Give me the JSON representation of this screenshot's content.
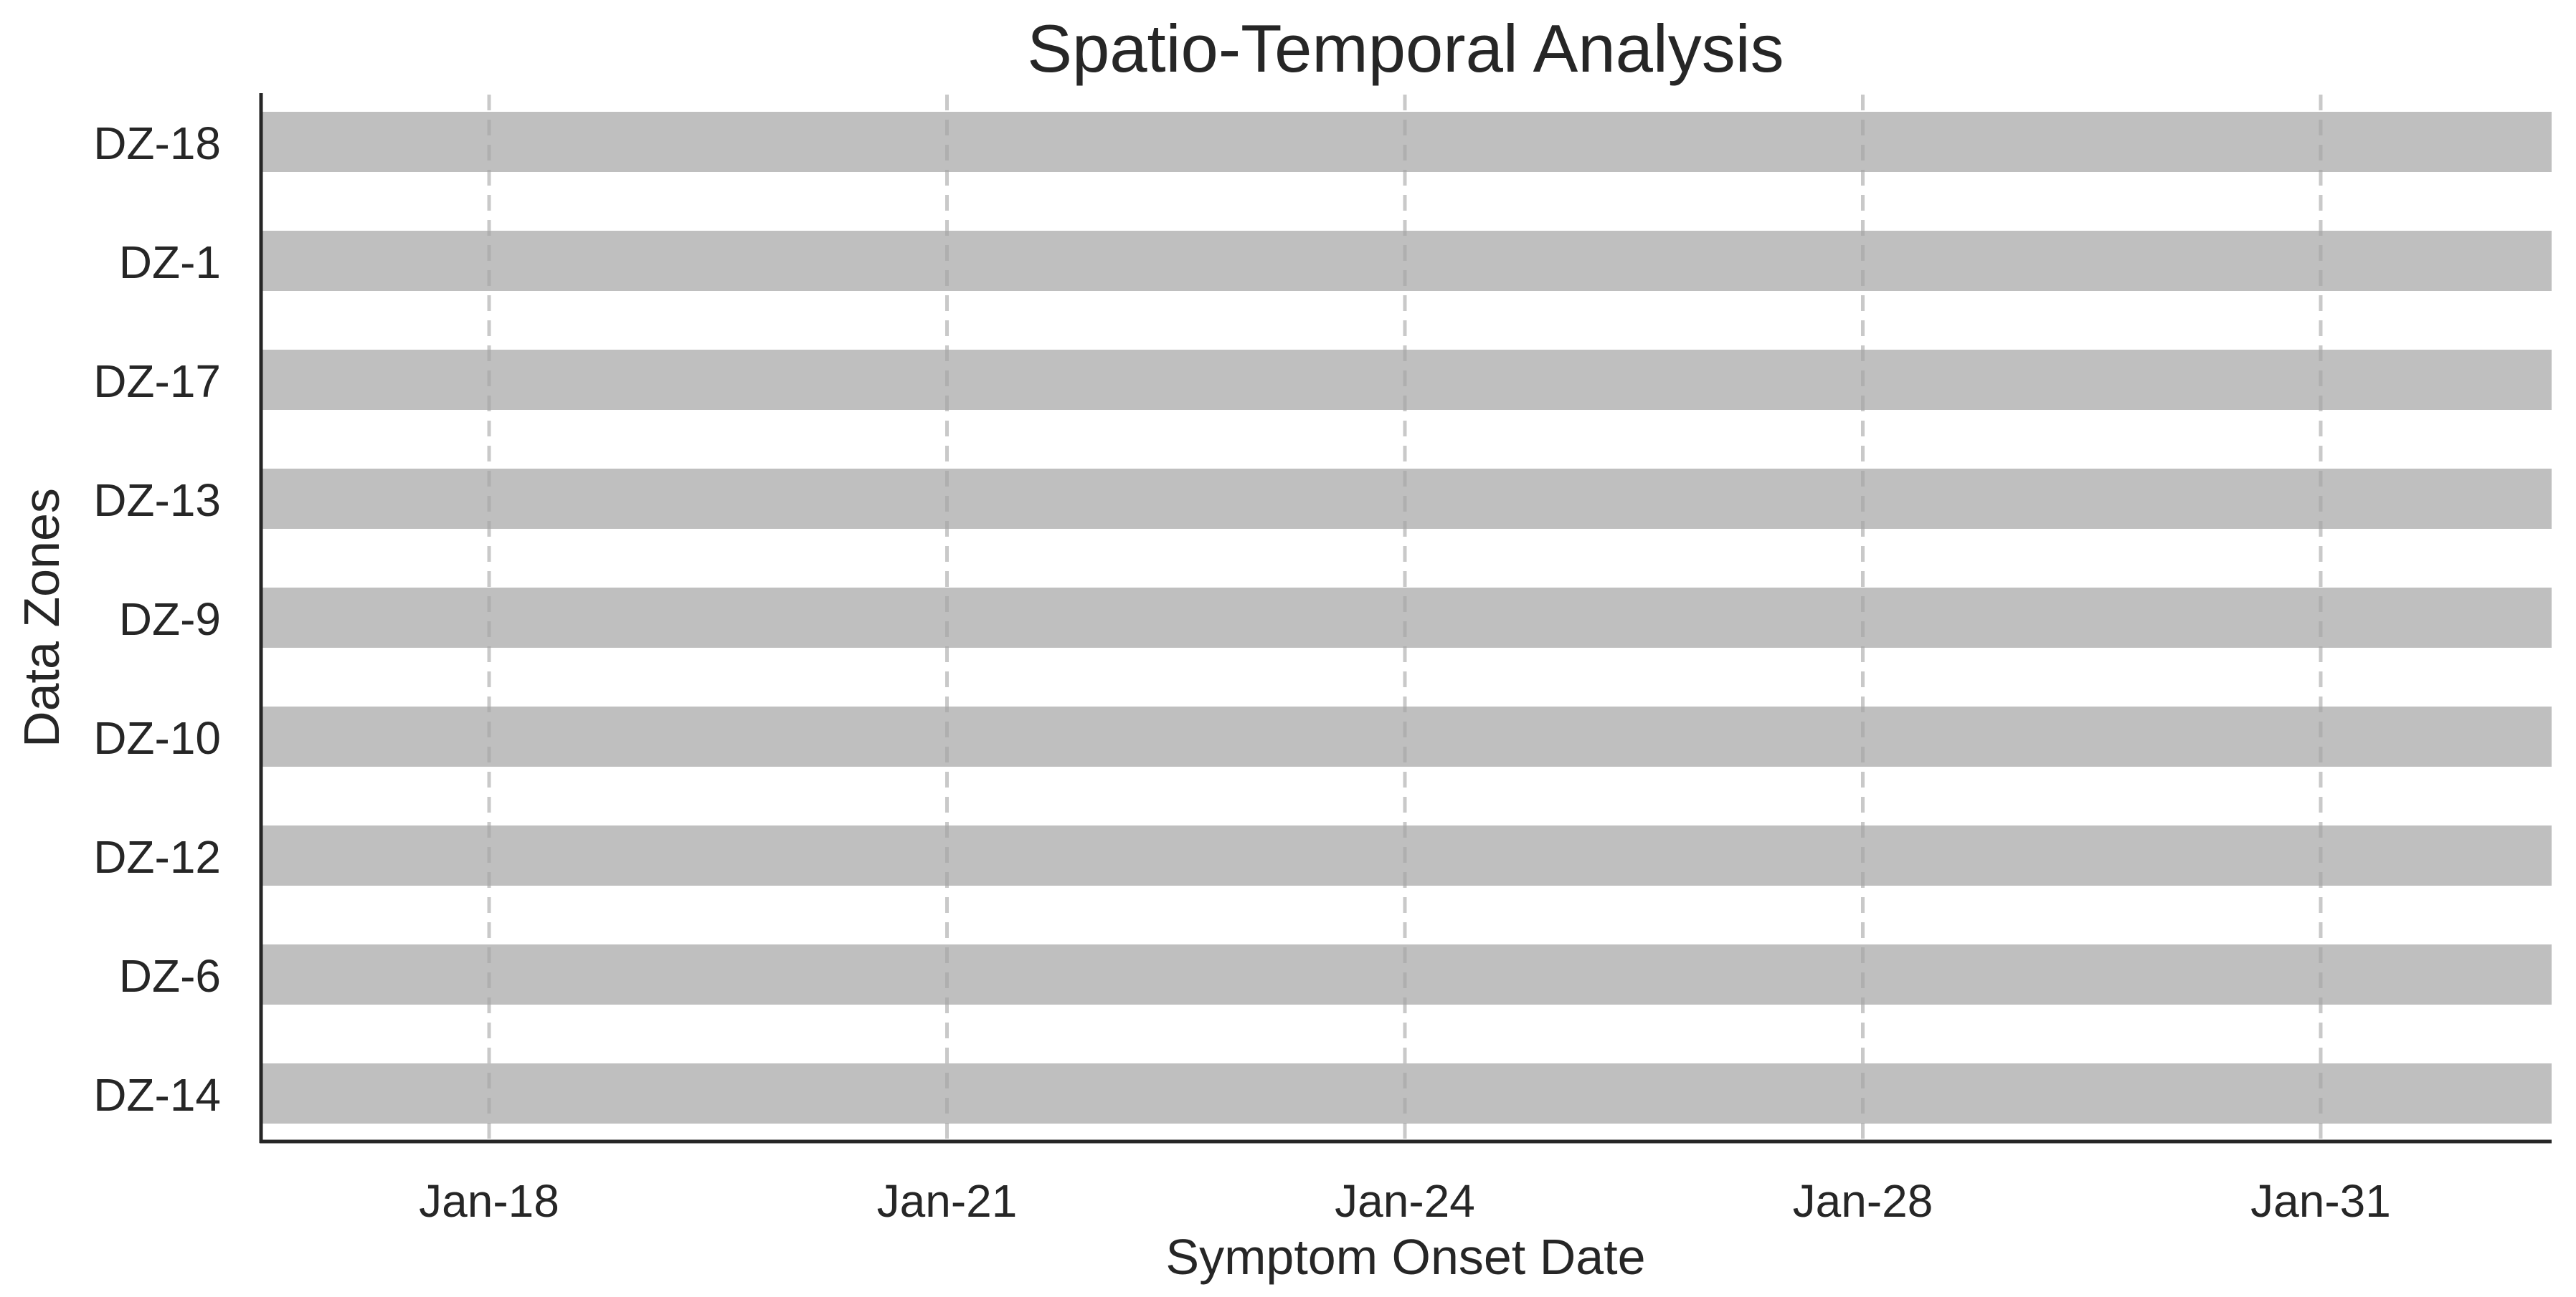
{
  "chart_data": {
    "type": "bar",
    "orientation": "horizontal",
    "title": "Spatio-Temporal Analysis",
    "xlabel": "Symptom Onset Date",
    "ylabel": "Data Zones",
    "categories": [
      "DZ-18",
      "DZ-1",
      "DZ-17",
      "DZ-13",
      "DZ-9",
      "DZ-10",
      "DZ-12",
      "DZ-6",
      "DZ-14"
    ],
    "x_ticks": [
      "Jan-18",
      "Jan-21",
      "Jan-24",
      "Jan-28",
      "Jan-31"
    ],
    "bar_color": "#bfbfbf",
    "grid": "vertical dashed lines at x ticks",
    "legend": "none"
  }
}
